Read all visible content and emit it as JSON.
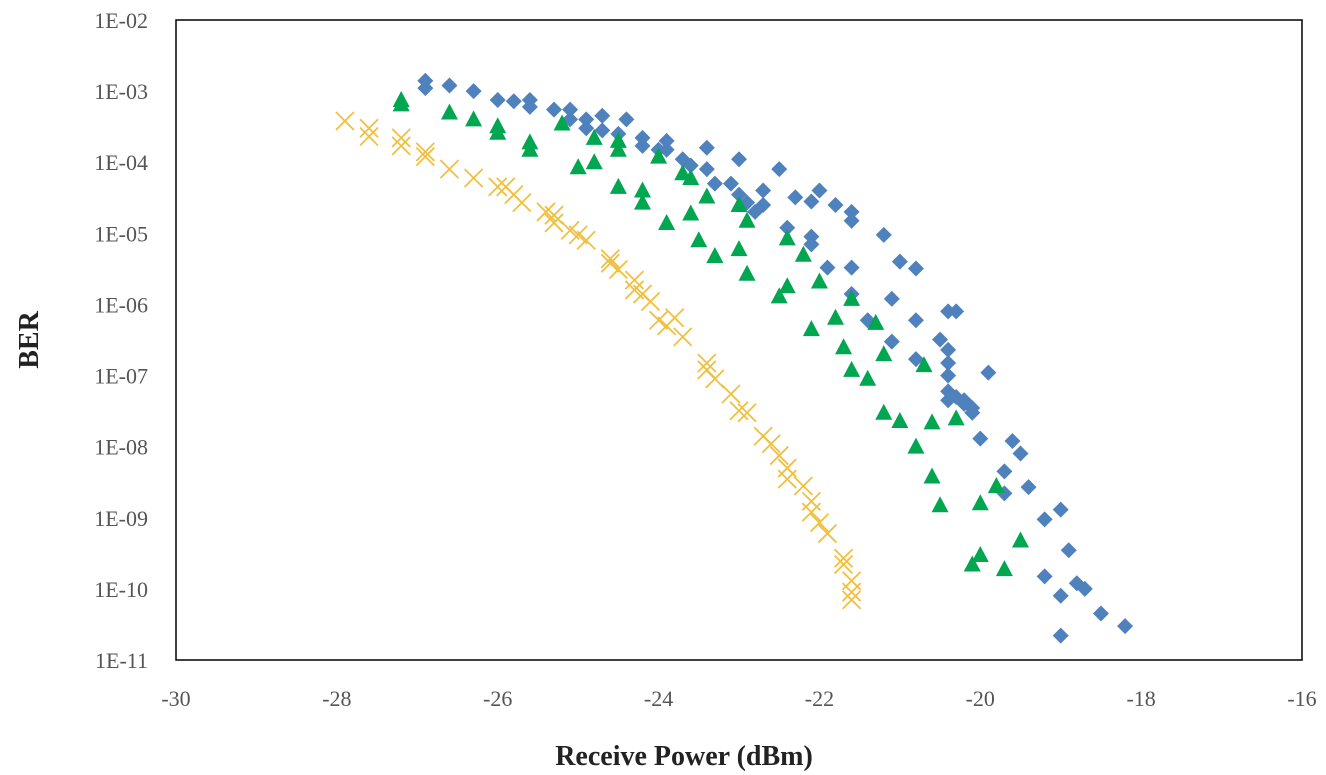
{
  "chart_data": {
    "type": "scatter",
    "title": "",
    "xlabel": "Receive Power (dBm)",
    "ylabel": "BER",
    "xlim": [
      -30,
      -16
    ],
    "ylim": [
      1e-11,
      0.01
    ],
    "yscale": "log",
    "grid": false,
    "legend": "none",
    "x_ticks": [
      "-30",
      "-28",
      "-26",
      "-24",
      "-22",
      "-20",
      "-18",
      "-16"
    ],
    "y_ticks": [
      "1E-02",
      "1E-03",
      "1E-04",
      "1E-05",
      "1E-06",
      "1E-07",
      "1E-08",
      "1E-09",
      "1E-10",
      "1E-11"
    ],
    "series": [
      {
        "marker": "diamond",
        "color": "#4f81bd",
        "points": [
          [
            -26.9,
            0.0014
          ],
          [
            -26.9,
            0.0011
          ],
          [
            -26.6,
            0.0012
          ],
          [
            -26.3,
            0.001
          ],
          [
            -26.0,
            0.00075
          ],
          [
            -25.8,
            0.00072
          ],
          [
            -25.6,
            0.00075
          ],
          [
            -25.6,
            0.0006
          ],
          [
            -25.3,
            0.00055
          ],
          [
            -25.1,
            0.00055
          ],
          [
            -25.1,
            0.0004
          ],
          [
            -24.9,
            0.0004
          ],
          [
            -24.9,
            0.0003
          ],
          [
            -24.7,
            0.00045
          ],
          [
            -24.7,
            0.00028
          ],
          [
            -24.5,
            0.00025
          ],
          [
            -24.4,
            0.0004
          ],
          [
            -24.2,
            0.00022
          ],
          [
            -24.2,
            0.00017
          ],
          [
            -24.0,
            0.00015
          ],
          [
            -23.9,
            0.0002
          ],
          [
            -23.9,
            0.00015
          ],
          [
            -23.7,
            0.00011
          ],
          [
            -23.6,
            9e-05
          ],
          [
            -23.4,
            0.00016
          ],
          [
            -23.4,
            8e-05
          ],
          [
            -23.3,
            5e-05
          ],
          [
            -23.1,
            5e-05
          ],
          [
            -23.0,
            0.00011
          ],
          [
            -23.0,
            3.5e-05
          ],
          [
            -22.9,
            2.7e-05
          ],
          [
            -22.8,
            2e-05
          ],
          [
            -22.7,
            4e-05
          ],
          [
            -22.7,
            2.5e-05
          ],
          [
            -22.5,
            8e-05
          ],
          [
            -22.4,
            1.2e-05
          ],
          [
            -22.3,
            3.2e-05
          ],
          [
            -22.1,
            2.8e-05
          ],
          [
            -22.0,
            4e-05
          ],
          [
            -21.8,
            2.5e-05
          ],
          [
            -22.1,
            9e-06
          ],
          [
            -22.1,
            7e-06
          ],
          [
            -21.9,
            3.3e-06
          ],
          [
            -21.6,
            2e-05
          ],
          [
            -21.6,
            1.5e-05
          ],
          [
            -21.6,
            3.3e-06
          ],
          [
            -21.2,
            9.5e-06
          ],
          [
            -21.0,
            4e-06
          ],
          [
            -20.8,
            3.2e-06
          ],
          [
            -21.6,
            1.4e-06
          ],
          [
            -21.1,
            1.2e-06
          ],
          [
            -21.1,
            3e-07
          ],
          [
            -21.4,
            6e-07
          ],
          [
            -20.8,
            6e-07
          ],
          [
            -20.5,
            3.2e-07
          ],
          [
            -20.8,
            1.7e-07
          ],
          [
            -20.4,
            8e-07
          ],
          [
            -20.3,
            8e-07
          ],
          [
            -20.4,
            2.3e-07
          ],
          [
            -20.4,
            1.5e-07
          ],
          [
            -20.4,
            1e-07
          ],
          [
            -20.4,
            6e-08
          ],
          [
            -20.4,
            4.5e-08
          ],
          [
            -20.3,
            5e-08
          ],
          [
            -20.2,
            4.5e-08
          ],
          [
            -20.2,
            4e-08
          ],
          [
            -20.1,
            3.5e-08
          ],
          [
            -20.1,
            3e-08
          ],
          [
            -19.9,
            1.1e-07
          ],
          [
            -20.0,
            1.3e-08
          ],
          [
            -19.6,
            1.2e-08
          ],
          [
            -19.5,
            8e-09
          ],
          [
            -19.7,
            4.5e-09
          ],
          [
            -19.7,
            2.2e-09
          ],
          [
            -19.4,
            2.7e-09
          ],
          [
            -19.2,
            9.5e-10
          ],
          [
            -19.0,
            1.3e-09
          ],
          [
            -18.9,
            3.5e-10
          ],
          [
            -19.2,
            1.5e-10
          ],
          [
            -18.8,
            1.2e-10
          ],
          [
            -18.7,
            1e-10
          ],
          [
            -19.0,
            8e-11
          ],
          [
            -18.5,
            4.5e-11
          ],
          [
            -19.0,
            2.2e-11
          ],
          [
            -18.2,
            3e-11
          ]
        ]
      },
      {
        "marker": "triangle",
        "color": "#00a650",
        "points": [
          [
            -27.2,
            0.00075
          ],
          [
            -27.2,
            0.00065
          ],
          [
            -26.6,
            0.0005
          ],
          [
            -26.3,
            0.0004
          ],
          [
            -26.0,
            0.00032
          ],
          [
            -26.0,
            0.00026
          ],
          [
            -25.6,
            0.00019
          ],
          [
            -25.6,
            0.00015
          ],
          [
            -25.2,
            0.00035
          ],
          [
            -25.0,
            8.5e-05
          ],
          [
            -24.8,
            0.00022
          ],
          [
            -24.8,
            0.0001
          ],
          [
            -24.5,
            0.0002
          ],
          [
            -24.5,
            0.00015
          ],
          [
            -24.5,
            4.5e-05
          ],
          [
            -24.2,
            4e-05
          ],
          [
            -24.2,
            2.7e-05
          ],
          [
            -24.0,
            0.00012
          ],
          [
            -23.9,
            1.4e-05
          ],
          [
            -23.7,
            7e-05
          ],
          [
            -23.6,
            6e-05
          ],
          [
            -23.6,
            1.9e-05
          ],
          [
            -23.4,
            3.3e-05
          ],
          [
            -23.5,
            8e-06
          ],
          [
            -23.3,
            4.8e-06
          ],
          [
            -23.0,
            2.5e-05
          ],
          [
            -22.9,
            1.5e-05
          ],
          [
            -23.0,
            6e-06
          ],
          [
            -22.9,
            2.7e-06
          ],
          [
            -22.4,
            8.5e-06
          ],
          [
            -22.2,
            5e-06
          ],
          [
            -22.0,
            2.1e-06
          ],
          [
            -22.5,
            1.3e-06
          ],
          [
            -22.4,
            1.8e-06
          ],
          [
            -21.8,
            6.5e-07
          ],
          [
            -22.1,
            4.5e-07
          ],
          [
            -21.6,
            1.2e-06
          ],
          [
            -21.7,
            2.5e-07
          ],
          [
            -21.6,
            1.2e-07
          ],
          [
            -21.4,
            9e-08
          ],
          [
            -21.3,
            5.5e-07
          ],
          [
            -21.2,
            2e-07
          ],
          [
            -20.7,
            1.4e-07
          ],
          [
            -21.2,
            3e-08
          ],
          [
            -21.0,
            2.3e-08
          ],
          [
            -20.6,
            2.2e-08
          ],
          [
            -20.8,
            1e-08
          ],
          [
            -20.3,
            2.5e-08
          ],
          [
            -20.6,
            3.8e-09
          ],
          [
            -20.5,
            1.5e-09
          ],
          [
            -19.8,
            2.8e-09
          ],
          [
            -20.0,
            1.6e-09
          ],
          [
            -19.5,
            4.8e-10
          ],
          [
            -20.0,
            3e-10
          ],
          [
            -20.1,
            2.2e-10
          ],
          [
            -19.7,
            1.9e-10
          ]
        ]
      },
      {
        "marker": "x",
        "color": "#f0c040",
        "points": [
          [
            -27.9,
            0.00038
          ],
          [
            -27.6,
            0.0003
          ],
          [
            -27.6,
            0.00023
          ],
          [
            -27.2,
            0.00022
          ],
          [
            -27.2,
            0.00017
          ],
          [
            -26.9,
            0.00014
          ],
          [
            -26.9,
            0.00012
          ],
          [
            -26.6,
            8e-05
          ],
          [
            -26.3,
            6e-05
          ],
          [
            -26.0,
            4.5e-05
          ],
          [
            -25.9,
            4.5e-05
          ],
          [
            -25.8,
            3.5e-05
          ],
          [
            -25.7,
            2.7e-05
          ],
          [
            -25.4,
            2e-05
          ],
          [
            -25.3,
            1.8e-05
          ],
          [
            -25.3,
            1.4e-05
          ],
          [
            -25.1,
            1.1e-05
          ],
          [
            -25.0,
            9.5e-06
          ],
          [
            -24.9,
            8e-06
          ],
          [
            -24.6,
            4.4e-06
          ],
          [
            -24.6,
            3.8e-06
          ],
          [
            -24.5,
            3.1e-06
          ],
          [
            -24.3,
            2.2e-06
          ],
          [
            -24.3,
            1.6e-06
          ],
          [
            -24.2,
            1.4e-06
          ],
          [
            -24.1,
            1.1e-06
          ],
          [
            -24.0,
            6e-07
          ],
          [
            -23.9,
            5e-07
          ],
          [
            -23.8,
            6.5e-07
          ],
          [
            -23.7,
            3.5e-07
          ],
          [
            -23.4,
            1.5e-07
          ],
          [
            -23.4,
            1.2e-07
          ],
          [
            -23.3,
            9e-08
          ],
          [
            -23.1,
            5.5e-08
          ],
          [
            -23.0,
            3.2e-08
          ],
          [
            -22.9,
            3e-08
          ],
          [
            -22.7,
            1.4e-08
          ],
          [
            -22.6,
            1.1e-08
          ],
          [
            -22.5,
            7.5e-09
          ],
          [
            -22.4,
            5e-09
          ],
          [
            -22.4,
            3.5e-09
          ],
          [
            -22.2,
            2.8e-09
          ],
          [
            -22.1,
            1.7e-09
          ],
          [
            -22.1,
            1.2e-09
          ],
          [
            -22.0,
            8.5e-10
          ],
          [
            -21.9,
            6e-10
          ],
          [
            -21.7,
            2.7e-10
          ],
          [
            -21.7,
            2.2e-10
          ],
          [
            -21.6,
            1.3e-10
          ],
          [
            -21.6,
            9e-11
          ],
          [
            -21.6,
            7e-11
          ]
        ]
      }
    ]
  }
}
